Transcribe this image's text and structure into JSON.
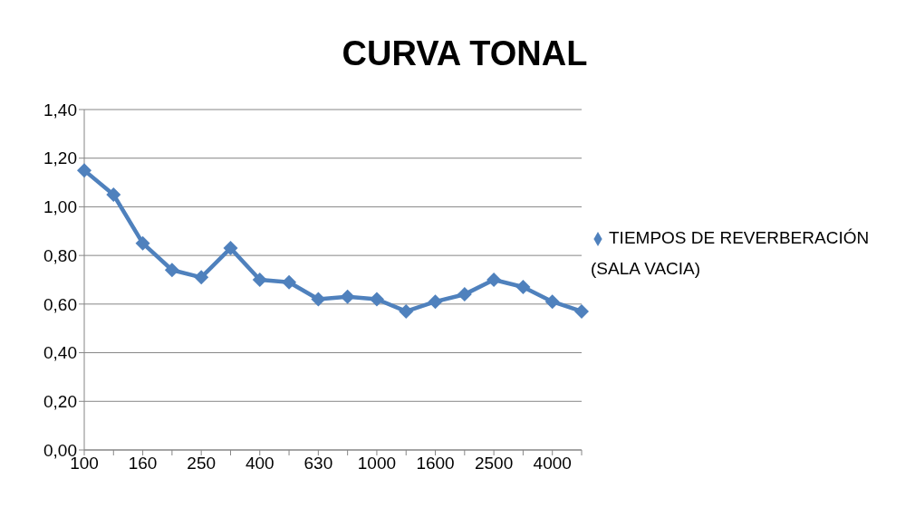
{
  "chart_data": {
    "type": "line",
    "title": "CURVA TONAL",
    "categories": [
      "100",
      null,
      "160",
      null,
      "250",
      null,
      "400",
      null,
      "630",
      null,
      "1000",
      null,
      "1600",
      null,
      "2500",
      null,
      "4000",
      null
    ],
    "series": [
      {
        "name": "TIEMPOS DE REVERBERACIÓN (SALA VACIA)",
        "color": "#4f81bd",
        "values": [
          1.15,
          1.05,
          0.85,
          0.74,
          0.71,
          0.83,
          0.7,
          0.69,
          0.62,
          0.63,
          0.62,
          0.57,
          0.61,
          0.64,
          0.7,
          0.67,
          0.61,
          0.57
        ]
      }
    ],
    "ylim": [
      0,
      1.4
    ],
    "yticks": [
      {
        "value": 0,
        "label": "0,00"
      },
      {
        "value": 0.2,
        "label": "0,20"
      },
      {
        "value": 0.4,
        "label": "0,40"
      },
      {
        "value": 0.6,
        "label": "0,60"
      },
      {
        "value": 0.8,
        "label": "0,80"
      },
      {
        "value": 1,
        "label": "1,00"
      },
      {
        "value": 1.2,
        "label": "1,20"
      },
      {
        "value": 1.4,
        "label": "1,40"
      }
    ],
    "grid": "y",
    "legend": "right",
    "marker": "diamond",
    "line_style": "solid"
  }
}
